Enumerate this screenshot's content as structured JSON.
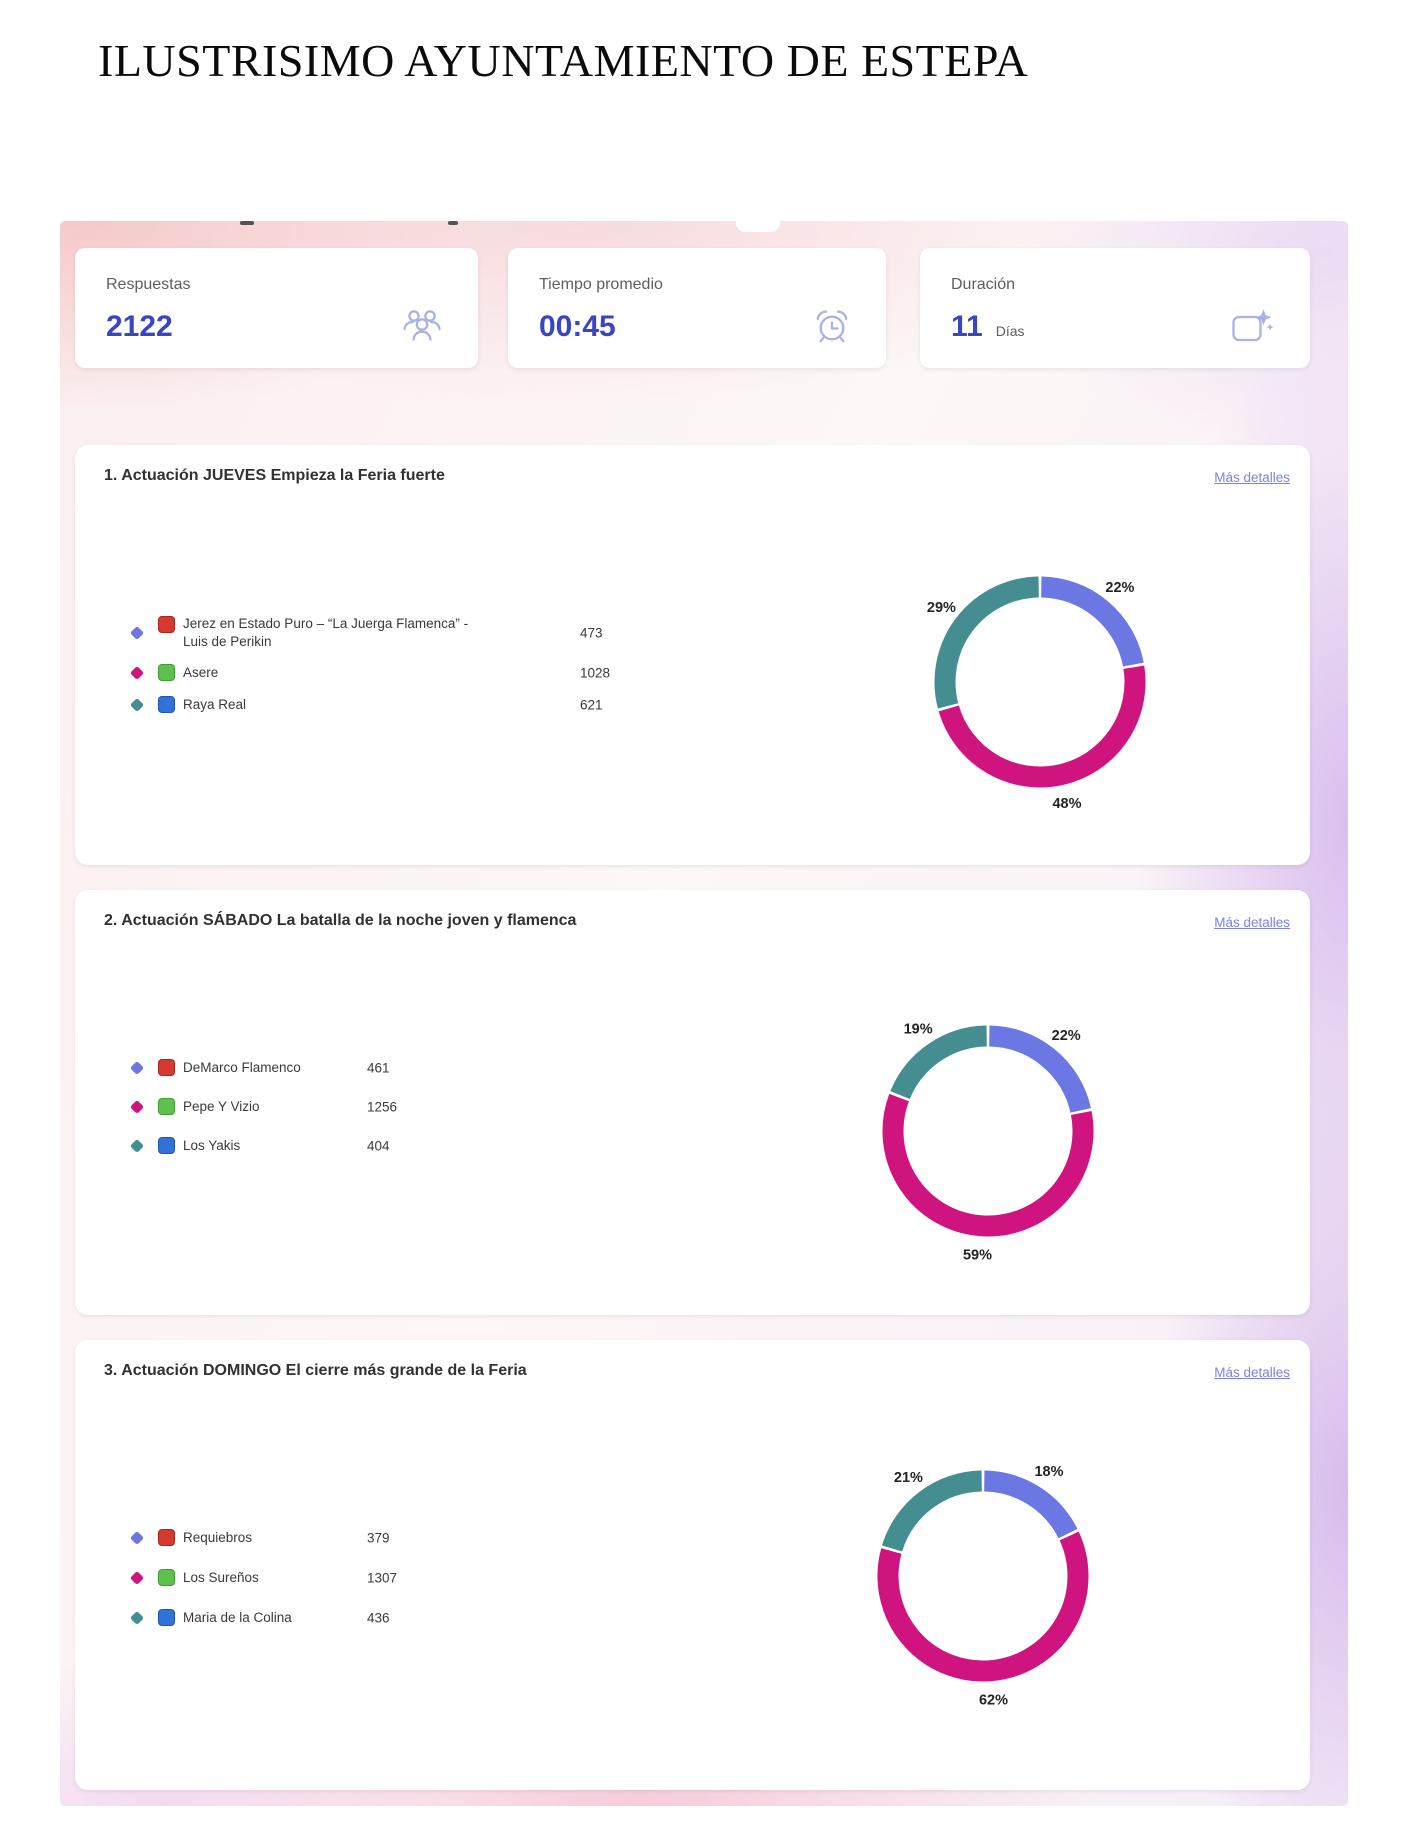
{
  "page_title": "ILUSTRISIMO AYUNTAMIENTO DE ESTEPA",
  "stats": {
    "responses": {
      "label": "Respuestas",
      "value": "2122",
      "icon": "people-icon"
    },
    "average_time": {
      "label": "Tiempo promedio",
      "value": "00:45",
      "icon": "alarm-clock-icon"
    },
    "duration": {
      "label": "Duración",
      "value": "11",
      "unit": "Días",
      "icon": "calendar-sparkle-icon"
    }
  },
  "more_details_label": "Más detalles",
  "colors": {
    "stat_value": "#3A45C3",
    "link": "#7B82E9",
    "donut_blue": "#6B77E3",
    "donut_magenta": "#D0147F",
    "donut_teal": "#448D90"
  },
  "chart_data": [
    {
      "type": "pie",
      "style": "donut",
      "question": "1. Actuación JUEVES Empieza la Feria fuerte",
      "legend_position": "left",
      "options": [
        {
          "label": "Jerez en Estado Puro – “La Juerga Flamenca” - Luis de Perikin",
          "votes": 473,
          "percent": "22%",
          "color": "#6B77E3",
          "swatch": "#D6392E",
          "swatch_border": "#AA241C"
        },
        {
          "label": "Asere",
          "votes": 1028,
          "percent": "48%",
          "color": "#D0147F",
          "swatch": "#5FC14D",
          "swatch_border": "#3E9F2F"
        },
        {
          "label": "Raya Real",
          "votes": 621,
          "percent": "29%",
          "color": "#448D90",
          "swatch": "#2F72D8",
          "swatch_border": "#2156AE"
        }
      ]
    },
    {
      "type": "pie",
      "style": "donut",
      "question": "2. Actuación SÁBADO  La batalla de la noche joven y flamenca",
      "legend_position": "left",
      "options": [
        {
          "label": "DeMarco Flamenco",
          "votes": 461,
          "percent": "22%",
          "color": "#6B77E3",
          "swatch": "#D6392E",
          "swatch_border": "#AA241C"
        },
        {
          "label": "Pepe Y Vizio",
          "votes": 1256,
          "percent": "59%",
          "color": "#D0147F",
          "swatch": "#5FC14D",
          "swatch_border": "#3E9F2F"
        },
        {
          "label": "Los Yakis",
          "votes": 404,
          "percent": "19%",
          "color": "#448D90",
          "swatch": "#2F72D8",
          "swatch_border": "#2156AE"
        }
      ]
    },
    {
      "type": "pie",
      "style": "donut",
      "question": "3. Actuación DOMINGO  El cierre más grande de la Feria",
      "legend_position": "left",
      "options": [
        {
          "label": "Requiebros",
          "votes": 379,
          "percent": "18%",
          "color": "#6B77E3",
          "swatch": "#D6392E",
          "swatch_border": "#AA241C"
        },
        {
          "label": "Los Sureños",
          "votes": 1307,
          "percent": "62%",
          "color": "#D0147F",
          "swatch": "#5FC14D",
          "swatch_border": "#3E9F2F"
        },
        {
          "label": "Maria de la Colina",
          "votes": 436,
          "percent": "21%",
          "color": "#448D90",
          "swatch": "#2F72D8",
          "swatch_border": "#2156AE"
        }
      ]
    }
  ]
}
